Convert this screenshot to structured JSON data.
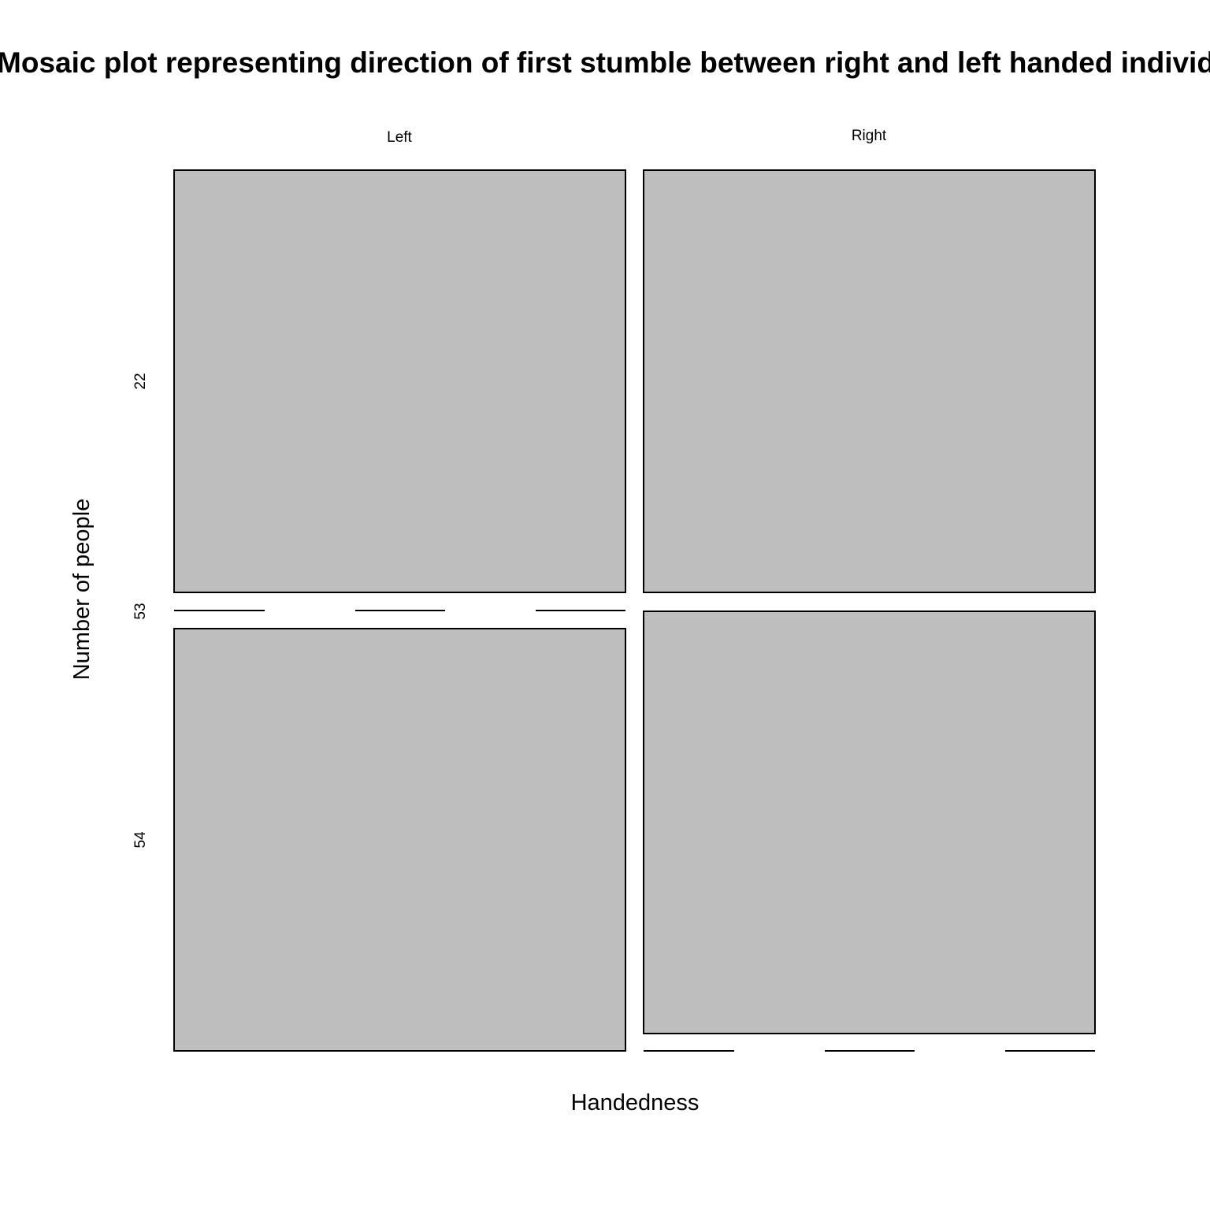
{
  "chart_data": {
    "type": "mosaic",
    "title": "Mosaic plot representing direction of first stumble between right and left handed individuals",
    "xlabel": "Handedness",
    "ylabel": "Number of people",
    "x_categories": [
      "Left",
      "Right"
    ],
    "y_labels": [
      "22",
      "53",
      "54"
    ],
    "cells": [
      {
        "x": "Left",
        "y": "22",
        "count": 0
      },
      {
        "x": "Left",
        "y": "53",
        "count": 0
      },
      {
        "x": "Left",
        "y": "54",
        "count": 0
      },
      {
        "x": "Right",
        "y": "22",
        "count": 0
      },
      {
        "x": "Right",
        "y": "53",
        "count": 0
      },
      {
        "x": "Right",
        "y": "54",
        "count": 0
      }
    ],
    "fill_color": "#bebebe",
    "grid": false
  }
}
